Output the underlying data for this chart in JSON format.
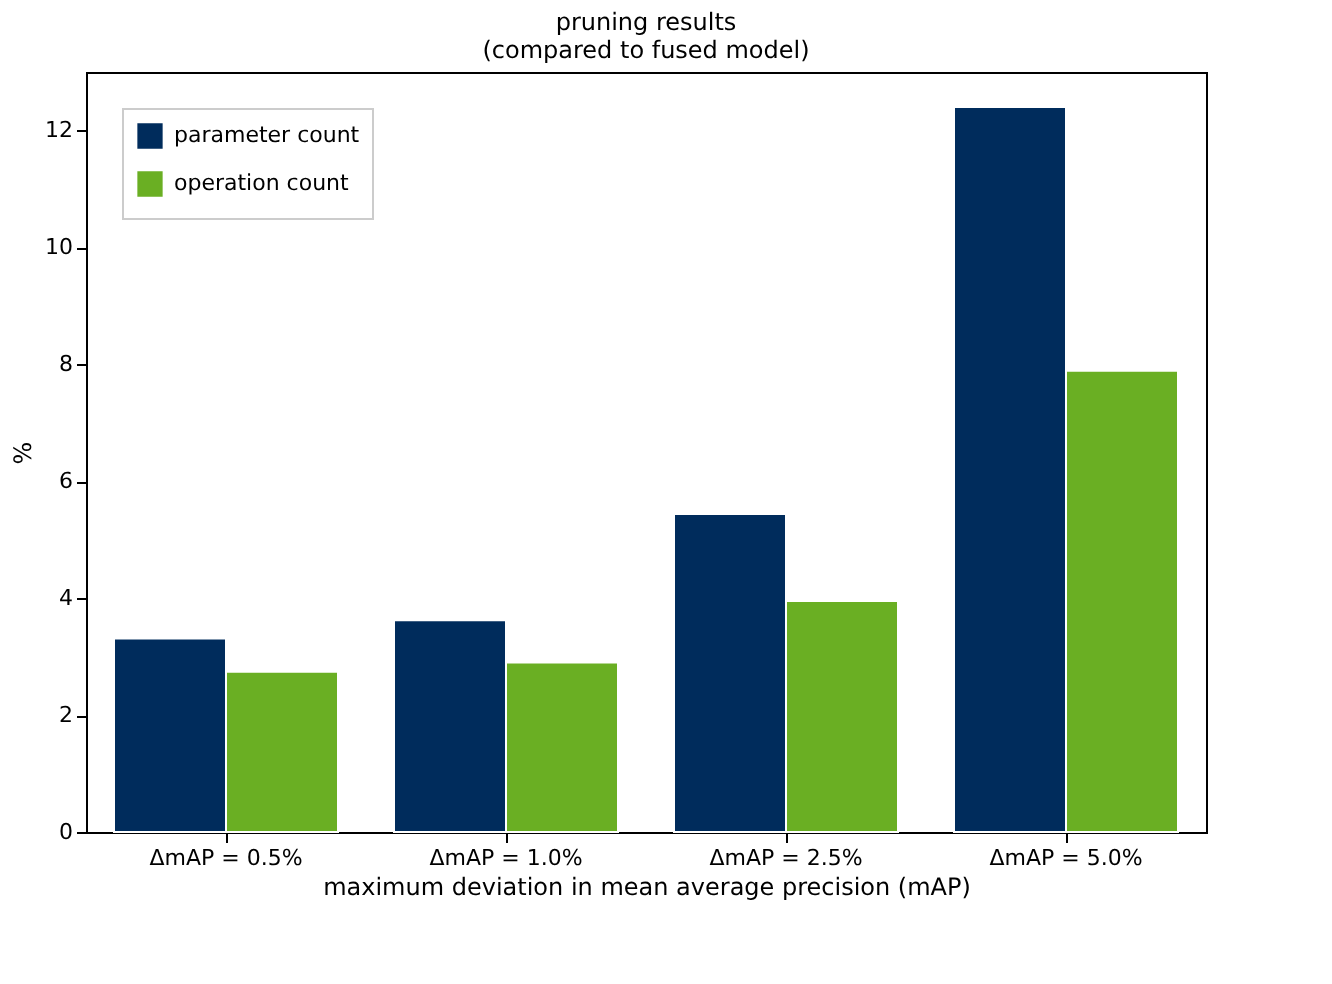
{
  "chart_data": {
    "type": "bar",
    "title": [
      "pruning results",
      "(compared to fused model)"
    ],
    "xlabel": "maximum deviation in mean average precision (mAP)",
    "ylabel": "%",
    "categories": [
      "ΔmAP = 0.5%",
      "ΔmAP = 1.0%",
      "ΔmAP = 2.5%",
      "ΔmAP = 5.0%"
    ],
    "series": [
      {
        "name": "parameter count",
        "color": "#002c5c",
        "values": [
          3.31,
          3.62,
          5.44,
          12.4
        ]
      },
      {
        "name": "operation count",
        "color": "#6aaf23",
        "values": [
          2.74,
          2.9,
          3.95,
          7.89
        ]
      }
    ],
    "ylim": [
      0,
      13.0
    ],
    "yticks": [
      0,
      2,
      4,
      6,
      8,
      10,
      12
    ],
    "grid": false,
    "legend": "top left"
  }
}
